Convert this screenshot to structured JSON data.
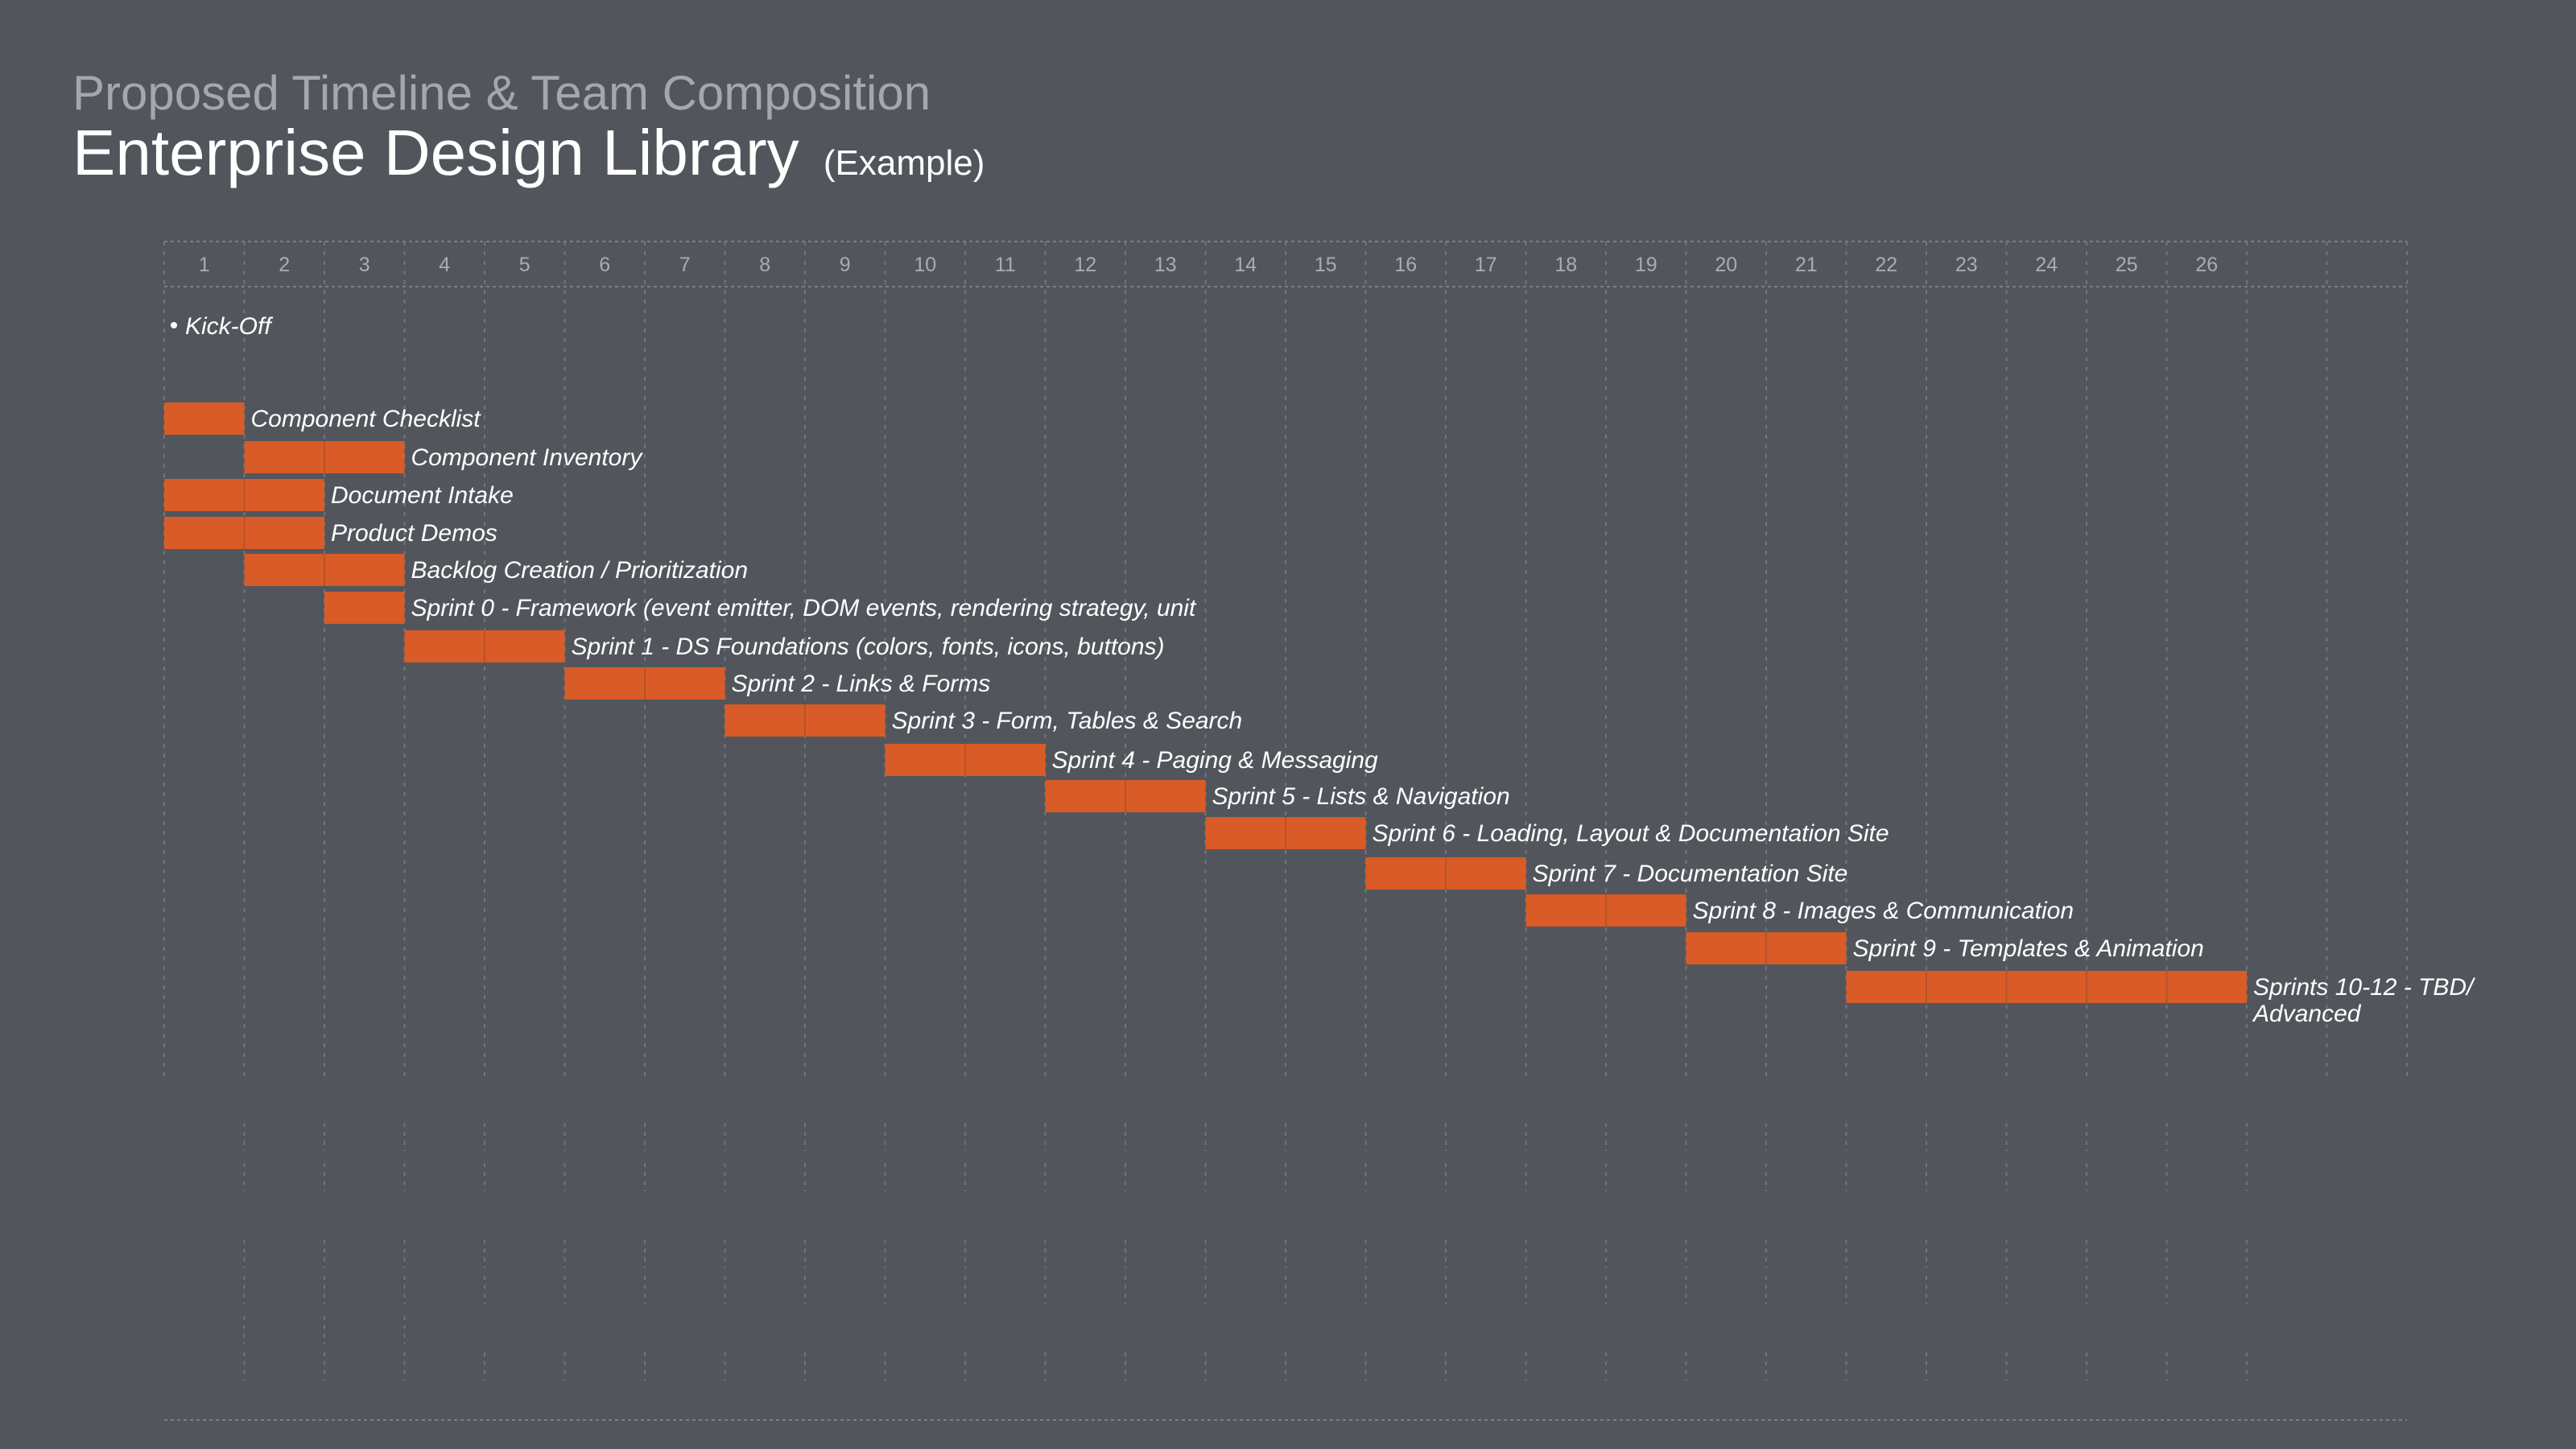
{
  "header": {
    "subtitle": "Proposed Timeline & Team Composition",
    "title": "Enterprise Design Library",
    "title_note": "(Example)"
  },
  "colors": {
    "background": "#52565c",
    "bar": "#d95b27",
    "grid": "#7c7f84",
    "subtitle": "#a4a7ab",
    "title": "#ffffff"
  },
  "chart_data": {
    "type": "gantt",
    "x_unit": "week",
    "weeks": [
      1,
      2,
      3,
      4,
      5,
      6,
      7,
      8,
      9,
      10,
      11,
      12,
      13,
      14,
      15,
      16,
      17,
      18,
      19,
      20,
      21,
      22,
      23,
      24,
      25,
      26
    ],
    "total_columns": 28,
    "milestones": [
      {
        "label": "Kick-Off",
        "week": 1
      }
    ],
    "tasks": [
      {
        "label": "Component Checklist",
        "start": 1,
        "end": 1
      },
      {
        "label": "Component Inventory",
        "start": 2,
        "end": 3
      },
      {
        "label": "Document Intake",
        "start": 1,
        "end": 2
      },
      {
        "label": "Product Demos",
        "start": 1,
        "end": 2
      },
      {
        "label": "Backlog Creation / Prioritization",
        "start": 2,
        "end": 3
      },
      {
        "label": "Sprint 0 - Framework (event emitter, DOM events, rendering strategy, unit",
        "start": 3,
        "end": 3
      },
      {
        "label": "Sprint 1 - DS Foundations (colors, fonts, icons, buttons)",
        "start": 4,
        "end": 5
      },
      {
        "label": "Sprint 2 - Links & Forms",
        "start": 6,
        "end": 7
      },
      {
        "label": "Sprint 3 - Form, Tables & Search",
        "start": 8,
        "end": 9
      },
      {
        "label": "Sprint 4 - Paging & Messaging",
        "start": 10,
        "end": 11
      },
      {
        "label": "Sprint 5 - Lists & Navigation",
        "start": 12,
        "end": 13
      },
      {
        "label": "Sprint 6 - Loading, Layout & Documentation Site",
        "start": 14,
        "end": 15
      },
      {
        "label": "Sprint 7 - Documentation Site",
        "start": 16,
        "end": 17
      },
      {
        "label": "Sprint 8 - Images & Communication",
        "start": 18,
        "end": 19
      },
      {
        "label": "Sprint 9 - Templates & Animation",
        "start": 20,
        "end": 21
      },
      {
        "label": "Sprints 10-12 - TBD/ Advanced",
        "label_lines": [
          "Sprints 10-12 - TBD/",
          "Advanced"
        ],
        "start": 22,
        "end": 26
      }
    ]
  }
}
